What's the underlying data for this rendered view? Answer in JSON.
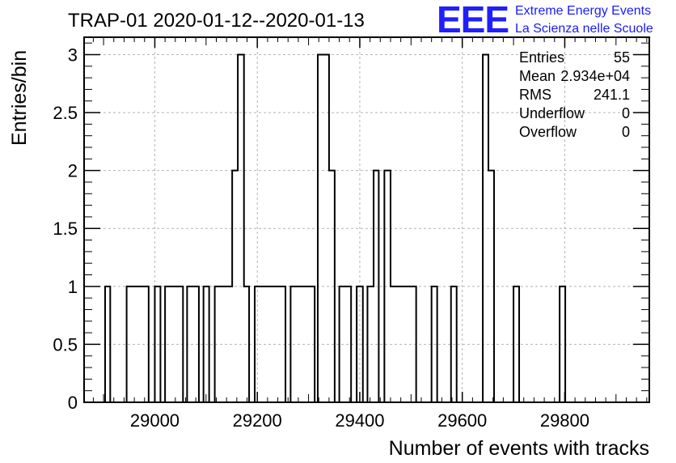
{
  "header": {
    "title": "TRAP-01 2020-01-12--2020-01-13",
    "logo_mark": "EEE",
    "logo_line1": "Extreme Energy Events",
    "logo_line2": "La Scienza nelle Scuole",
    "logo_color": "#1a1aff"
  },
  "stats": {
    "rows": [
      {
        "label": "Entries",
        "value": "55"
      },
      {
        "label": "Mean",
        "value": "2.934e+04"
      },
      {
        "label": "RMS",
        "value": "241.1"
      },
      {
        "label": "Underflow",
        "value": "0"
      },
      {
        "label": "Overflow",
        "value": "0"
      }
    ]
  },
  "chart_data": {
    "type": "bar",
    "style": "step-histogram",
    "xlabel": "Number of events with tracks",
    "ylabel": "Entries/bin",
    "xlim": [
      28862,
      29965
    ],
    "ylim": [
      0,
      3.15
    ],
    "bin_width": 10.9,
    "x_ticks": [
      29000,
      29200,
      29400,
      29600,
      29800
    ],
    "x_tick_labels": [
      "29000",
      "29200",
      "29400",
      "29600",
      "29800"
    ],
    "y_ticks": [
      0,
      0.5,
      1,
      1.5,
      2,
      2.5,
      3
    ],
    "y_tick_labels": [
      "0",
      "0.5",
      "1",
      "1.5",
      "2",
      "2.5",
      "3"
    ],
    "grid": true,
    "line_color": "#000000",
    "bins": [
      {
        "x_start": 28903,
        "x_end": 28913,
        "value": 1
      },
      {
        "x_start": 28945,
        "x_end": 28988,
        "value": 1
      },
      {
        "x_start": 29000,
        "x_end": 29011,
        "value": 1
      },
      {
        "x_start": 29020,
        "x_end": 29055,
        "value": 1
      },
      {
        "x_start": 29063,
        "x_end": 29086,
        "value": 1
      },
      {
        "x_start": 29095,
        "x_end": 29106,
        "value": 1
      },
      {
        "x_start": 29117,
        "x_end": 29140,
        "value": 1
      },
      {
        "x_start": 29140,
        "x_end": 29151,
        "value": 1
      },
      {
        "x_start": 29151,
        "x_end": 29162,
        "value": 2
      },
      {
        "x_start": 29162,
        "x_end": 29174,
        "value": 3
      },
      {
        "x_start": 29174,
        "x_end": 29184,
        "value": 1
      },
      {
        "x_start": 29195,
        "x_end": 29255,
        "value": 1
      },
      {
        "x_start": 29265,
        "x_end": 29312,
        "value": 1
      },
      {
        "x_start": 29318,
        "x_end": 29340,
        "value": 3
      },
      {
        "x_start": 29340,
        "x_end": 29351,
        "value": 2
      },
      {
        "x_start": 29360,
        "x_end": 29383,
        "value": 1
      },
      {
        "x_start": 29394,
        "x_end": 29406,
        "value": 1
      },
      {
        "x_start": 29415,
        "x_end": 29427,
        "value": 1
      },
      {
        "x_start": 29427,
        "x_end": 29437,
        "value": 2
      },
      {
        "x_start": 29448,
        "x_end": 29460,
        "value": 2
      },
      {
        "x_start": 29460,
        "x_end": 29475,
        "value": 1
      },
      {
        "x_start": 29475,
        "x_end": 29510,
        "value": 1
      },
      {
        "x_start": 29540,
        "x_end": 29551,
        "value": 1
      },
      {
        "x_start": 29578,
        "x_end": 29589,
        "value": 1
      },
      {
        "x_start": 29640,
        "x_end": 29651,
        "value": 3
      },
      {
        "x_start": 29651,
        "x_end": 29662,
        "value": 2
      },
      {
        "x_start": 29700,
        "x_end": 29711,
        "value": 1
      },
      {
        "x_start": 29790,
        "x_end": 29801,
        "value": 1
      }
    ]
  }
}
